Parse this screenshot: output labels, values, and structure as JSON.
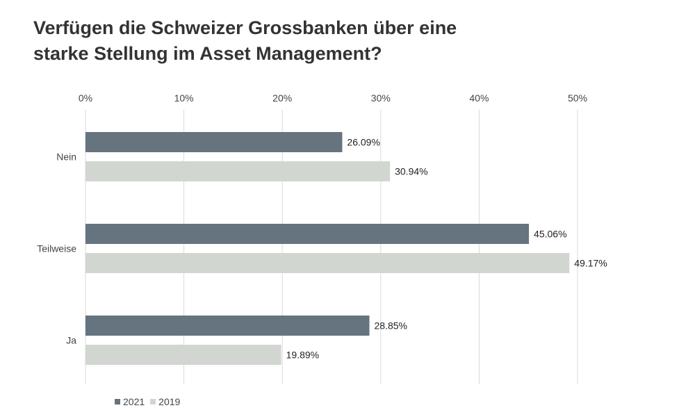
{
  "chart_data": {
    "type": "bar",
    "orientation": "horizontal",
    "title_lines": [
      "Verfügen die Schweizer Grossbanken über eine",
      "starke Stellung im Asset Management?"
    ],
    "categories": [
      "Nein",
      "Teilweise",
      "Ja"
    ],
    "series": [
      {
        "name": "2021",
        "color": "#65747f",
        "values": [
          26.09,
          45.06,
          28.85
        ]
      },
      {
        "name": "2019",
        "color": "#d2d6d1",
        "values": [
          30.94,
          49.17,
          19.89
        ]
      }
    ],
    "data_labels": [
      [
        "26.09%",
        "45.06%",
        "28.85%"
      ],
      [
        "30.94%",
        "49.17%",
        "19.89%"
      ]
    ],
    "xlim": [
      0,
      50
    ],
    "x_ticks": [
      "0%",
      "10%",
      "20%",
      "30%",
      "40%",
      "50%"
    ],
    "x_axis_position": "top",
    "grid": true,
    "gridline_color": "#d9d9d9",
    "legend_position": "bottom-left"
  }
}
